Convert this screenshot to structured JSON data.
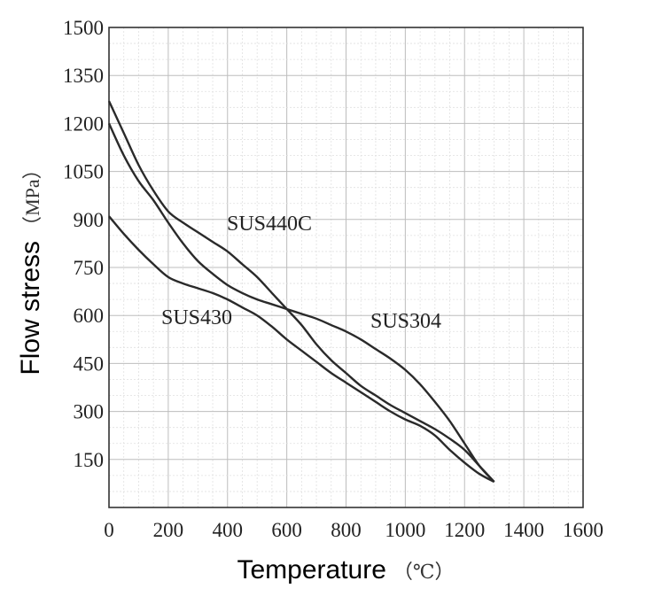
{
  "chart_data": {
    "type": "line",
    "xlabel": "Temperature",
    "xunit": "（℃）",
    "ylabel": "Flow stress",
    "yunit": "（MPa）",
    "xlim": [
      0,
      1600
    ],
    "ylim": [
      0,
      1500
    ],
    "xticks": [
      0,
      200,
      400,
      600,
      800,
      1000,
      1200,
      1400,
      1600
    ],
    "yticks": [
      150,
      300,
      450,
      600,
      750,
      900,
      1050,
      1200,
      1350,
      1500
    ],
    "grid": true,
    "series": [
      {
        "name": "SUS440C",
        "color": "#2a2a2a",
        "x": [
          0,
          50,
          100,
          150,
          200,
          250,
          300,
          350,
          400,
          450,
          500,
          550,
          600,
          650,
          700,
          750,
          800,
          850,
          900,
          950,
          1000,
          1050,
          1100,
          1150,
          1200,
          1250,
          1300
        ],
        "y": [
          1270,
          1170,
          1070,
          990,
          925,
          890,
          860,
          830,
          800,
          760,
          720,
          670,
          620,
          570,
          510,
          460,
          420,
          380,
          350,
          320,
          295,
          270,
          245,
          215,
          180,
          130,
          80
        ]
      },
      {
        "name": "SUS304",
        "color": "#2a2a2a",
        "x": [
          0,
          50,
          100,
          150,
          200,
          250,
          300,
          350,
          400,
          450,
          500,
          550,
          600,
          650,
          700,
          750,
          800,
          850,
          900,
          950,
          1000,
          1050,
          1100,
          1150,
          1200,
          1250,
          1300
        ],
        "y": [
          1200,
          1100,
          1020,
          960,
          890,
          825,
          770,
          730,
          695,
          670,
          650,
          635,
          620,
          605,
          590,
          570,
          550,
          525,
          495,
          465,
          430,
          385,
          330,
          270,
          200,
          130,
          80
        ]
      },
      {
        "name": "SUS430",
        "color": "#2a2a2a",
        "x": [
          0,
          50,
          100,
          150,
          200,
          250,
          300,
          350,
          400,
          450,
          500,
          550,
          600,
          650,
          700,
          750,
          800,
          850,
          900,
          950,
          1000,
          1050,
          1100,
          1150,
          1200,
          1250,
          1300
        ],
        "y": [
          910,
          855,
          805,
          760,
          720,
          700,
          685,
          670,
          650,
          625,
          600,
          565,
          525,
          490,
          455,
          420,
          390,
          360,
          330,
          300,
          275,
          255,
          225,
          180,
          140,
          105,
          80
        ]
      }
    ]
  }
}
